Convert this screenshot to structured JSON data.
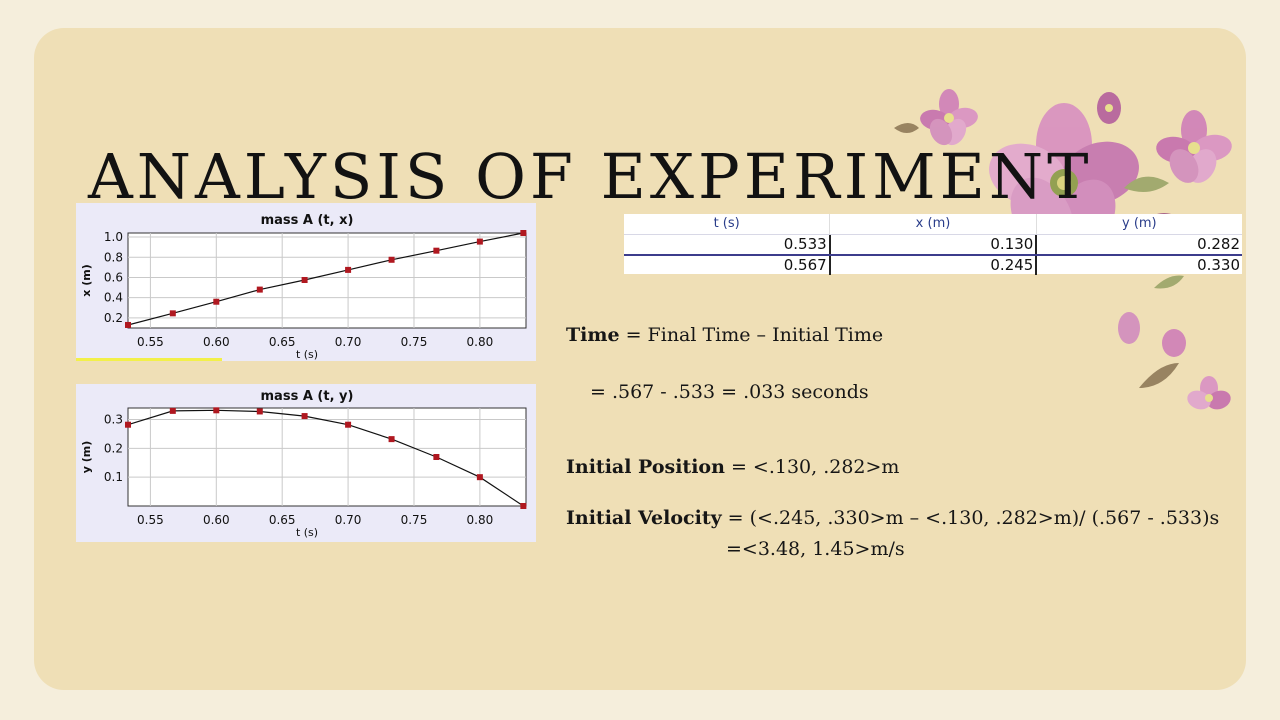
{
  "slide": {
    "title": "ANALYSIS OF EXPERIMENT"
  },
  "chart_data": [
    {
      "type": "scatter",
      "title": "mass A (t, x)",
      "xlabel": "t (s)",
      "ylabel": "x (m)",
      "xlim": [
        0.533,
        0.835
      ],
      "ylim": [
        0.1,
        1.04
      ],
      "xticks": [
        "0.55",
        "0.60",
        "0.65",
        "0.70",
        "0.75",
        "0.80"
      ],
      "yticks": [
        "0.2",
        "0.4",
        "0.6",
        "0.8",
        "1.0"
      ],
      "grid": true,
      "x": [
        0.533,
        0.567,
        0.6,
        0.633,
        0.667,
        0.7,
        0.733,
        0.767,
        0.8,
        0.833
      ],
      "y": [
        0.13,
        0.245,
        0.36,
        0.48,
        0.575,
        0.675,
        0.775,
        0.865,
        0.955,
        1.04
      ],
      "marker_color": "#b01820",
      "line_color": "#111111",
      "fit": "line"
    },
    {
      "type": "scatter",
      "title": "mass A (t, y)",
      "xlabel": "t (s)",
      "ylabel": "y (m)",
      "xlim": [
        0.533,
        0.835
      ],
      "ylim": [
        0.0,
        0.34
      ],
      "xticks": [
        "0.55",
        "0.60",
        "0.65",
        "0.70",
        "0.75",
        "0.80"
      ],
      "yticks": [
        "0.1",
        "0.2",
        "0.3"
      ],
      "grid": true,
      "x": [
        0.533,
        0.567,
        0.6,
        0.633,
        0.667,
        0.7,
        0.733,
        0.767,
        0.8,
        0.833
      ],
      "y": [
        0.282,
        0.33,
        0.332,
        0.328,
        0.312,
        0.282,
        0.232,
        0.17,
        0.1,
        0.0
      ],
      "marker_color": "#b01820",
      "line_color": "#111111",
      "fit": "quadratic"
    }
  ],
  "table": {
    "headers": [
      "t (s)",
      "x (m)",
      "y (m)"
    ],
    "rows": [
      [
        "0.533",
        "0.130",
        "0.282"
      ],
      [
        "0.567",
        "0.245",
        "0.330"
      ]
    ]
  },
  "equations": {
    "time_label": "Time",
    "time_eq": " = Final Time – Initial Time",
    "time_calc": "= .567 - .533 = .033 seconds",
    "pos_label": "Initial Position",
    "pos_eq": " = <.130, .282>m",
    "vel_label": "Initial Velocity",
    "vel_eq": " = (<.245, .330>m – <.130, .282>m)/ (.567 - .533)s",
    "vel_result": "=<3.48, 1.45>m/s"
  },
  "colors": {
    "slide_bg": "#efdfb6",
    "page_bg": "#f5eedc",
    "plot_bg": "#ebeaf8",
    "marker": "#b01820",
    "table_header_text": "#2a3d8a"
  }
}
